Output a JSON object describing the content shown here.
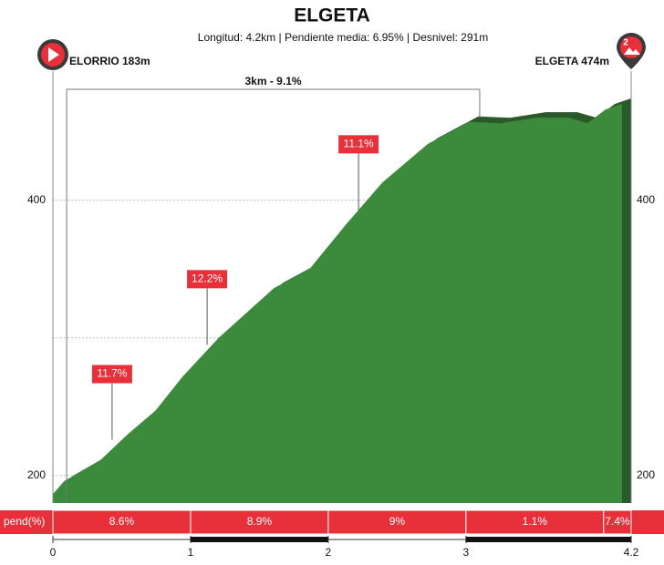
{
  "chart_data": {
    "type": "elevation-profile",
    "title": "ELGETA",
    "subtitle": "Longitud: 4.2km | Pendiente media: 6.95% | Desnivel: 291m",
    "start_label": "ELORRIO 183m",
    "end_label": "ELGETA 474m",
    "category_badge": "2",
    "xlim": [
      0,
      4.2
    ],
    "xticks": [
      0,
      1,
      2,
      3,
      4.2
    ],
    "ylim": [
      180,
      480
    ],
    "yticks": [
      200,
      {
        "value": 300,
        "label": null
      },
      400
    ],
    "grid": true,
    "profile": {
      "color": "#3c8a3c",
      "shadow_color": "#2a5a2a",
      "x": [
        0,
        0.15,
        0.41,
        0.61,
        0.81,
        1.01,
        1.27,
        1.67,
        1.93,
        2.2,
        2.46,
        2.79,
        3.09,
        3.32,
        3.58,
        3.81,
        3.95,
        4.08,
        4.2
      ],
      "values": [
        183,
        200,
        215,
        234,
        251,
        276,
        304,
        340,
        354,
        387,
        417,
        445,
        461,
        460,
        464,
        464,
        460,
        470,
        474
      ]
    },
    "bracket": {
      "label": "3km - 9.1%",
      "from": 0.1,
      "to": 3.1
    },
    "annotations": [
      {
        "text": "11.7%",
        "x": 0.43,
        "elevation": 226
      },
      {
        "text": "12.2%",
        "x": 1.12,
        "elevation": 295
      },
      {
        "text": "11.1%",
        "x": 2.22,
        "elevation": 393
      }
    ],
    "slope_bar": {
      "label": "pend(%)",
      "color": "#e8303a",
      "bins": [
        0,
        1,
        2,
        3,
        4,
        4.2
      ],
      "values": [
        8.6,
        8.9,
        9,
        1.1,
        7.4
      ],
      "value_labels": [
        "8.6%",
        "8.9%",
        "9%",
        "1.1%",
        "7.4%"
      ]
    }
  }
}
